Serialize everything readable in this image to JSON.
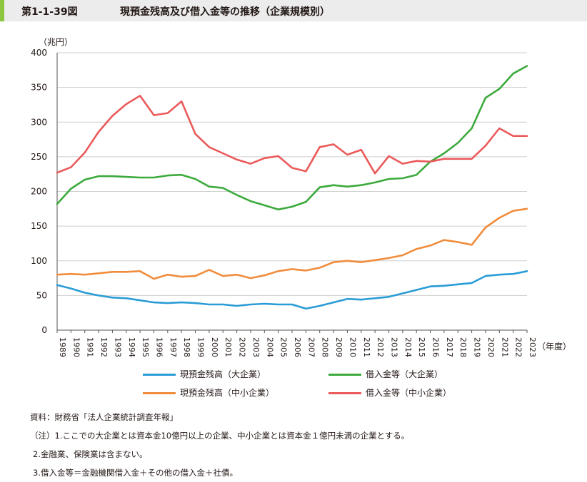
{
  "header": {
    "figure_number": "第1-1-39図",
    "title": "現預金残高及び借入金等の推移（企業規模別）"
  },
  "colors": {
    "header_bg": "#ececec",
    "header_accent": "#8cc63f",
    "blue": "#2a9cd6",
    "green": "#3caa3c",
    "orange": "#f08c3c",
    "red": "#eb5a5a"
  },
  "chart_data": {
    "type": "line",
    "y_unit": "（兆円）",
    "x_unit": "（年度）",
    "ylim": [
      0,
      400
    ],
    "yticks": [
      0,
      50,
      100,
      150,
      200,
      250,
      300,
      350,
      400
    ],
    "x": [
      "1989",
      "1990",
      "1991",
      "1992",
      "1993",
      "1994",
      "1995",
      "1996",
      "1997",
      "1998",
      "1999",
      "2000",
      "2001",
      "2002",
      "2003",
      "2004",
      "2005",
      "2006",
      "2007",
      "2008",
      "2009",
      "2010",
      "2011",
      "2012",
      "2013",
      "2014",
      "2015",
      "2016",
      "2017",
      "2018",
      "2019",
      "2020",
      "2021",
      "2022",
      "2023"
    ],
    "grid": "horizontal",
    "series": [
      {
        "name": "現預金残高（大企業）",
        "color": "#2a9cd6",
        "values": [
          65,
          60,
          54,
          50,
          47,
          46,
          43,
          40,
          39,
          40,
          39,
          37,
          37,
          35,
          37,
          38,
          37,
          37,
          31,
          35,
          40,
          45,
          44,
          46,
          48,
          53,
          58,
          63,
          64,
          66,
          68,
          78,
          80,
          81,
          85
        ]
      },
      {
        "name": "借入金等（大企業）",
        "color": "#3caa3c",
        "values": [
          182,
          204,
          217,
          222,
          222,
          221,
          220,
          220,
          223,
          224,
          218,
          207,
          205,
          195,
          186,
          180,
          174,
          178,
          185,
          206,
          209,
          207,
          209,
          213,
          218,
          219,
          224,
          243,
          255,
          270,
          291,
          335,
          348,
          370,
          381
        ]
      },
      {
        "name": "現預金残高（中小企業）",
        "color": "#f08c3c",
        "values": [
          80,
          81,
          80,
          82,
          84,
          84,
          85,
          74,
          80,
          77,
          78,
          87,
          78,
          80,
          75,
          79,
          85,
          88,
          86,
          90,
          98,
          100,
          98,
          101,
          104,
          108,
          117,
          122,
          130,
          127,
          123,
          148,
          162,
          172,
          175
        ]
      },
      {
        "name": "借入金等（中小企業）",
        "color": "#eb5a5a",
        "values": [
          227,
          235,
          256,
          286,
          309,
          326,
          338,
          310,
          313,
          330,
          283,
          264,
          255,
          246,
          240,
          248,
          251,
          234,
          229,
          264,
          268,
          253,
          260,
          226,
          251,
          240,
          244,
          243,
          247,
          247,
          247,
          266,
          291,
          280,
          280
        ]
      }
    ]
  },
  "notes": [
    "資料：財務省「法人企業統計調査年報」",
    "（注）1.ここでの大企業とは資本金10億円以上の企業、中小企業とは資本金１億円未満の企業とする。",
    "2.金融業、保険業は含まない。",
    "3.借入金等＝金融機関借入金＋その他の借入金＋社債。"
  ]
}
